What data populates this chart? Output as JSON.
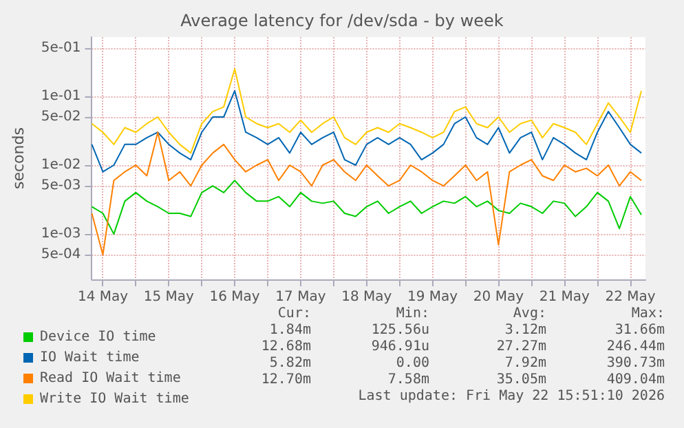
{
  "chart_data": {
    "type": "line",
    "title": "Average latency for /dev/sda - by week",
    "ylabel": "seconds",
    "log": "y",
    "grid": true,
    "legend": "bottom",
    "marker": "none",
    "line_style": "solid",
    "xlim": [
      "2026-05-14T08:00",
      "2026-05-22T17:30"
    ],
    "xticks": [
      {
        "value": "2026-05-14T12:00",
        "label": "14 May"
      },
      {
        "value": "2026-05-15T00:00",
        "label": null
      },
      {
        "value": "2026-05-15T12:00",
        "label": "15 May"
      },
      {
        "value": "2026-05-16T00:00",
        "label": null
      },
      {
        "value": "2026-05-16T12:00",
        "label": "16 May"
      },
      {
        "value": "2026-05-17T00:00",
        "label": null
      },
      {
        "value": "2026-05-17T12:00",
        "label": "17 May"
      },
      {
        "value": "2026-05-18T00:00",
        "label": null
      },
      {
        "value": "2026-05-18T12:00",
        "label": "18 May"
      },
      {
        "value": "2026-05-19T00:00",
        "label": null
      },
      {
        "value": "2026-05-19T12:00",
        "label": "19 May"
      },
      {
        "value": "2026-05-20T00:00",
        "label": null
      },
      {
        "value": "2026-05-20T12:00",
        "label": "20 May"
      },
      {
        "value": "2026-05-21T00:00",
        "label": null
      },
      {
        "value": "2026-05-21T12:00",
        "label": "21 May"
      },
      {
        "value": "2026-05-22T00:00",
        "label": null
      },
      {
        "value": "2026-05-22T12:00",
        "label": "22 May"
      }
    ],
    "ylim": [
      0.00022,
      0.72
    ],
    "yticks": [
      {
        "value": 0.0005,
        "label": "5e-04"
      },
      {
        "value": 0.001,
        "label": "1e-03"
      },
      {
        "value": 0.005,
        "label": "5e-03"
      },
      {
        "value": 0.01,
        "label": "1e-02"
      },
      {
        "value": 0.05,
        "label": "5e-02"
      },
      {
        "value": 0.1,
        "label": "1e-01"
      },
      {
        "value": 0.5,
        "label": "5e-01"
      }
    ],
    "x": [
      "2026-05-14T08:00",
      "2026-05-14T12:00",
      "2026-05-14T16:00",
      "2026-05-14T20:00",
      "2026-05-15T00:00",
      "2026-05-15T04:00",
      "2026-05-15T08:00",
      "2026-05-15T12:00",
      "2026-05-15T16:00",
      "2026-05-15T20:00",
      "2026-05-16T00:00",
      "2026-05-16T04:00",
      "2026-05-16T08:00",
      "2026-05-16T12:00",
      "2026-05-16T16:00",
      "2026-05-16T20:00",
      "2026-05-17T00:00",
      "2026-05-17T04:00",
      "2026-05-17T08:00",
      "2026-05-17T12:00",
      "2026-05-17T16:00",
      "2026-05-17T20:00",
      "2026-05-18T00:00",
      "2026-05-18T04:00",
      "2026-05-18T08:00",
      "2026-05-18T12:00",
      "2026-05-18T16:00",
      "2026-05-18T20:00",
      "2026-05-19T00:00",
      "2026-05-19T04:00",
      "2026-05-19T08:00",
      "2026-05-19T12:00",
      "2026-05-19T16:00",
      "2026-05-19T20:00",
      "2026-05-20T00:00",
      "2026-05-20T04:00",
      "2026-05-20T08:00",
      "2026-05-20T12:00",
      "2026-05-20T16:00",
      "2026-05-20T20:00",
      "2026-05-21T00:00",
      "2026-05-21T04:00",
      "2026-05-21T08:00",
      "2026-05-21T12:00",
      "2026-05-21T16:00",
      "2026-05-21T20:00",
      "2026-05-22T00:00",
      "2026-05-22T04:00",
      "2026-05-22T08:00",
      "2026-05-22T12:00",
      "2026-05-22T16:00"
    ],
    "series": [
      {
        "name": "Device IO time",
        "color": "#00cc00",
        "values": [
          0.0025,
          0.002,
          0.001,
          0.003,
          0.004,
          0.003,
          0.0025,
          0.002,
          0.002,
          0.0018,
          0.004,
          0.005,
          0.004,
          0.006,
          0.004,
          0.003,
          0.003,
          0.0035,
          0.0025,
          0.004,
          0.003,
          0.0028,
          0.003,
          0.002,
          0.0018,
          0.0025,
          0.003,
          0.002,
          0.0025,
          0.003,
          0.002,
          0.0025,
          0.003,
          0.0028,
          0.0035,
          0.0025,
          0.003,
          0.0022,
          0.002,
          0.0028,
          0.0025,
          0.002,
          0.003,
          0.0028,
          0.0018,
          0.0025,
          0.004,
          0.003,
          0.0012,
          0.0035,
          0.0019
        ]
      },
      {
        "name": "IO Wait time",
        "color": "#0066b3",
        "values": [
          0.02,
          0.008,
          0.01,
          0.02,
          0.02,
          0.025,
          0.03,
          0.02,
          0.015,
          0.012,
          0.03,
          0.05,
          0.05,
          0.12,
          0.03,
          0.025,
          0.02,
          0.025,
          0.015,
          0.03,
          0.02,
          0.025,
          0.03,
          0.012,
          0.01,
          0.02,
          0.025,
          0.02,
          0.025,
          0.02,
          0.012,
          0.015,
          0.02,
          0.04,
          0.05,
          0.025,
          0.02,
          0.035,
          0.015,
          0.025,
          0.03,
          0.012,
          0.025,
          0.02,
          0.015,
          0.012,
          0.03,
          0.06,
          0.035,
          0.02,
          0.015
        ]
      },
      {
        "name": "Read IO Wait time",
        "color": "#ff8000",
        "values": [
          0.002,
          0.0005,
          0.006,
          0.008,
          0.01,
          0.007,
          0.03,
          0.006,
          0.008,
          0.005,
          0.01,
          0.015,
          0.02,
          0.012,
          0.008,
          0.01,
          0.012,
          0.006,
          0.01,
          0.008,
          0.005,
          0.01,
          0.012,
          0.008,
          0.006,
          0.01,
          0.007,
          0.005,
          0.006,
          0.01,
          0.008,
          0.006,
          0.005,
          0.007,
          0.01,
          0.006,
          0.008,
          0.0007,
          0.008,
          0.01,
          0.012,
          0.007,
          0.006,
          0.01,
          0.008,
          0.009,
          0.007,
          0.01,
          0.005,
          0.008,
          0.006
        ]
      },
      {
        "name": "Write IO Wait time",
        "color": "#ffcc00",
        "values": [
          0.04,
          0.03,
          0.02,
          0.035,
          0.03,
          0.04,
          0.05,
          0.03,
          0.02,
          0.015,
          0.04,
          0.06,
          0.07,
          0.25,
          0.05,
          0.04,
          0.035,
          0.04,
          0.03,
          0.045,
          0.03,
          0.04,
          0.05,
          0.025,
          0.02,
          0.03,
          0.035,
          0.03,
          0.04,
          0.035,
          0.03,
          0.025,
          0.03,
          0.06,
          0.07,
          0.04,
          0.035,
          0.05,
          0.03,
          0.04,
          0.045,
          0.025,
          0.04,
          0.035,
          0.03,
          0.02,
          0.04,
          0.08,
          0.05,
          0.03,
          0.12
        ]
      }
    ],
    "annotations": [
      "Cur:",
      "Min:",
      "Avg:",
      "Max:",
      "1.84m",
      "125.56u",
      "3.12m",
      "31.66m",
      "12.68m",
      "946.91u",
      "27.27m",
      "246.44m",
      "5.82m",
      "0.00",
      "7.92m",
      "390.73m",
      "12.70m",
      "7.58m",
      "35.05m",
      "409.04m",
      "Last update: Fri May 22 15:51:10 2026"
    ]
  }
}
